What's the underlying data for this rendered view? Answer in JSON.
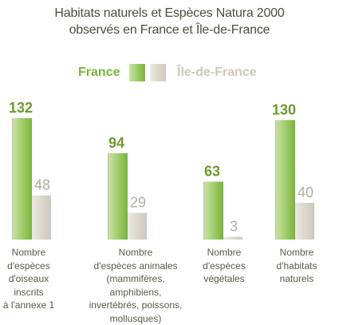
{
  "title_lines": [
    "Habitats naturels et Espèces Natura 2000",
    "observés en France et Île-de-France"
  ],
  "colors": {
    "france": "#7ab53a",
    "france_light": "#c9e2a3",
    "idf": "#cdc8bb",
    "idf_light": "#ece9e2",
    "france_value_text": "#6e9a2c",
    "idf_value_text": "#b3ae9f",
    "axis_line": "#7a7a70"
  },
  "chart_data": {
    "type": "bar",
    "title": "Habitats naturels et Espèces Natura 2000 observés en France et Île-de-France",
    "legend_position": "top-center",
    "categories": [
      "Nombre d'espèces d'oiseaux inscrits à l'annexe 1",
      "Nombre d'espèces animales (mammifères, amphibiens, invertébrés, poissons, mollusques)",
      "Nombre d'espèces végétales",
      "Nombre d'habitats naturels"
    ],
    "category_lines": [
      [
        "Nombre",
        "d'espèces",
        "d'oiseaux",
        "inscrits",
        "à l'annexe 1"
      ],
      [
        "Nombre",
        "d'espèces animales",
        "(mammifères, amphibiens,",
        "invertébrés, poissons,",
        "mollusques)"
      ],
      [
        "Nombre",
        "d'espèces",
        "végétales"
      ],
      [
        "Nombre",
        "d'habitats",
        "naturels"
      ]
    ],
    "series": [
      {
        "name": "France",
        "values": [
          132,
          94,
          63,
          130
        ]
      },
      {
        "name": "Île-de-France",
        "values": [
          48,
          29,
          3,
          40
        ]
      }
    ],
    "ylim": [
      0,
      132
    ],
    "grid": false
  }
}
